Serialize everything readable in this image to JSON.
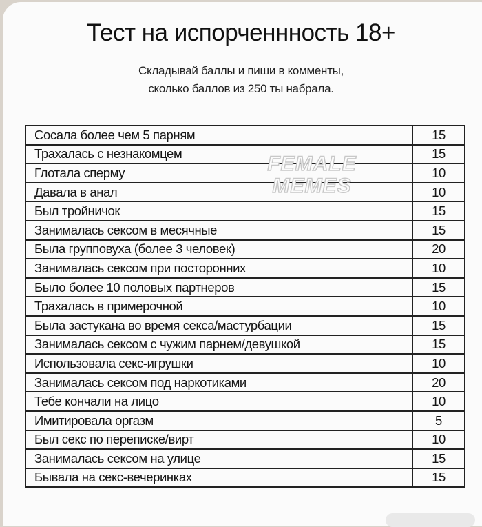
{
  "title": "Тест на испорченнность 18+",
  "subtitle_line1": "Складывай баллы и пиши в комменты,",
  "subtitle_line2": "сколько баллов из 250 ты набрала.",
  "watermark": "FEMALE MEMES",
  "rows": [
    {
      "label": "Сосала более чем 5 парням",
      "score": "15"
    },
    {
      "label": "Трахалась с незнакомцем",
      "score": "15"
    },
    {
      "label": "Глотала сперму",
      "score": "10"
    },
    {
      "label": "Давала в анал",
      "score": "10"
    },
    {
      "label": "Был тройничок",
      "score": "15"
    },
    {
      "label": "Занималась сексом в месячные",
      "score": "15"
    },
    {
      "label": "Была групповуха (более 3 человек)",
      "score": "20"
    },
    {
      "label": "Занималась сексом при посторонних",
      "score": "10"
    },
    {
      "label": "Было более 10 половых партнеров",
      "score": "15"
    },
    {
      "label": "Трахалась в примерочной",
      "score": "10"
    },
    {
      "label": "Была застукана во время секса/мастурбации",
      "score": "15"
    },
    {
      "label": "Занималась сексом с чужим парнем/девушкой",
      "score": "15"
    },
    {
      "label": "Использовала секс-игрушки",
      "score": "10"
    },
    {
      "label": "Занималась сексом под наркотиками",
      "score": "20"
    },
    {
      "label": "Тебе кончали на лицо",
      "score": "10"
    },
    {
      "label": "Имитировала оргазм",
      "score": "5"
    },
    {
      "label": "Был секс по переписке/вирт",
      "score": "10"
    },
    {
      "label": "Занималась сексом на улице",
      "score": "15"
    },
    {
      "label": "Бывала на секс-вечеринках",
      "score": "15"
    }
  ]
}
